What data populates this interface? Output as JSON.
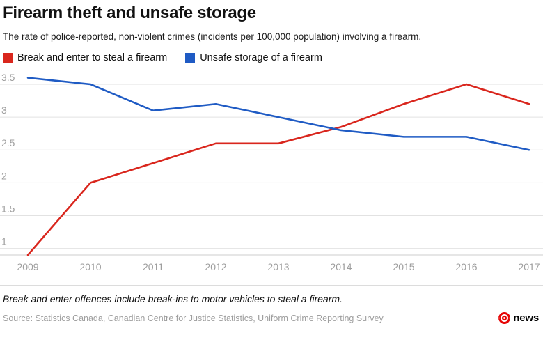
{
  "header": {
    "title": "Firearm theft and unsafe storage",
    "subtitle": "The rate of police-reported, non-violent crimes (incidents per 100,000 population) involving a firearm."
  },
  "legend": [
    {
      "label": "Break and enter to steal a firearm",
      "color": "#d9261d"
    },
    {
      "label": "Unsafe storage of a firearm",
      "color": "#1f5bc4"
    }
  ],
  "chart_data": {
    "type": "line",
    "x": [
      2009,
      2010,
      2011,
      2012,
      2013,
      2014,
      2015,
      2016,
      2017
    ],
    "series": [
      {
        "name": "Break and enter to steal a firearm",
        "color": "#d9261d",
        "values": [
          0.9,
          2.0,
          2.3,
          2.6,
          2.6,
          2.85,
          3.2,
          3.5,
          3.2
        ]
      },
      {
        "name": "Unsafe storage of a firearm",
        "color": "#1f5bc4",
        "values": [
          3.6,
          3.5,
          3.1,
          3.2,
          3.0,
          2.8,
          2.7,
          2.7,
          2.5
        ]
      }
    ],
    "yticks": [
      1,
      1.5,
      2,
      2.5,
      3,
      3.5
    ],
    "ylim": [
      0.9,
      3.65
    ],
    "grid": true,
    "legend_position": "top",
    "title": "Firearm theft and unsafe storage",
    "xlabel": "",
    "ylabel": "Incidents per 100,000 population"
  },
  "footnote": "Break and enter offences include break-ins to motor vehicles to steal a firearm.",
  "footer": {
    "source": "Source: Statistics Canada, Canadian Centre for Justice Statistics, Uniform Crime Reporting Survey",
    "logo_text": "news"
  },
  "colors": {
    "red_series": "#d9261d",
    "blue_series": "#1f5bc4",
    "gridline": "#e2e2e2",
    "axis_line": "#cccccc",
    "tick_label": "#9e9e9e",
    "logo_red": "#e60505"
  }
}
